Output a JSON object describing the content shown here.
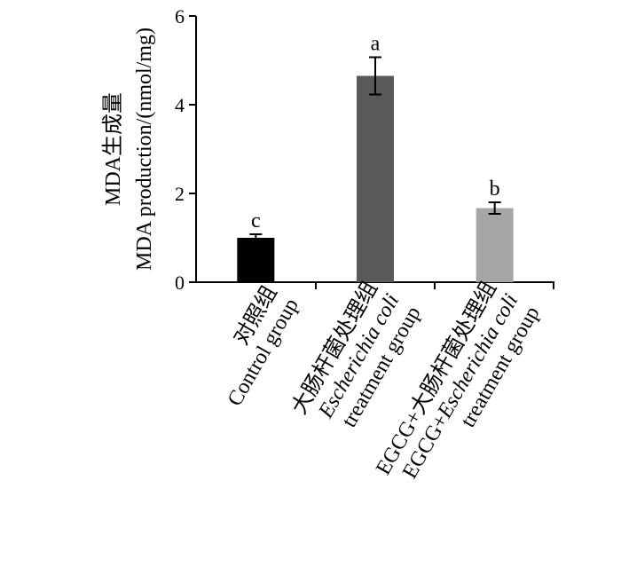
{
  "chart_data": {
    "type": "bar",
    "ylabel_line1": "MDA生成量",
    "ylabel_line2": "MDA production/(nmol/mg)",
    "ylim": [
      0,
      6
    ],
    "yticks": [
      "0",
      "2",
      "4",
      "6"
    ],
    "grid": false,
    "categories": [
      {
        "line1": "对照组",
        "line2": "Control group",
        "line3": ""
      },
      {
        "line1": "大肠杆菌处理组",
        "line2_italic": "Escherichia coli",
        "line3": "treatment group"
      },
      {
        "line1": "EGCG+大肠杆菌处理组",
        "line2_prefix": "EGCG+",
        "line2_italic": "Escherichia coli",
        "line3": "treatment group"
      }
    ],
    "values": [
      1.0,
      4.65,
      1.67
    ],
    "errors": [
      0.08,
      0.42,
      0.13
    ],
    "significance": [
      "c",
      "a",
      "b"
    ],
    "colors": [
      "#000000",
      "#595959",
      "#a6a6a6"
    ]
  }
}
